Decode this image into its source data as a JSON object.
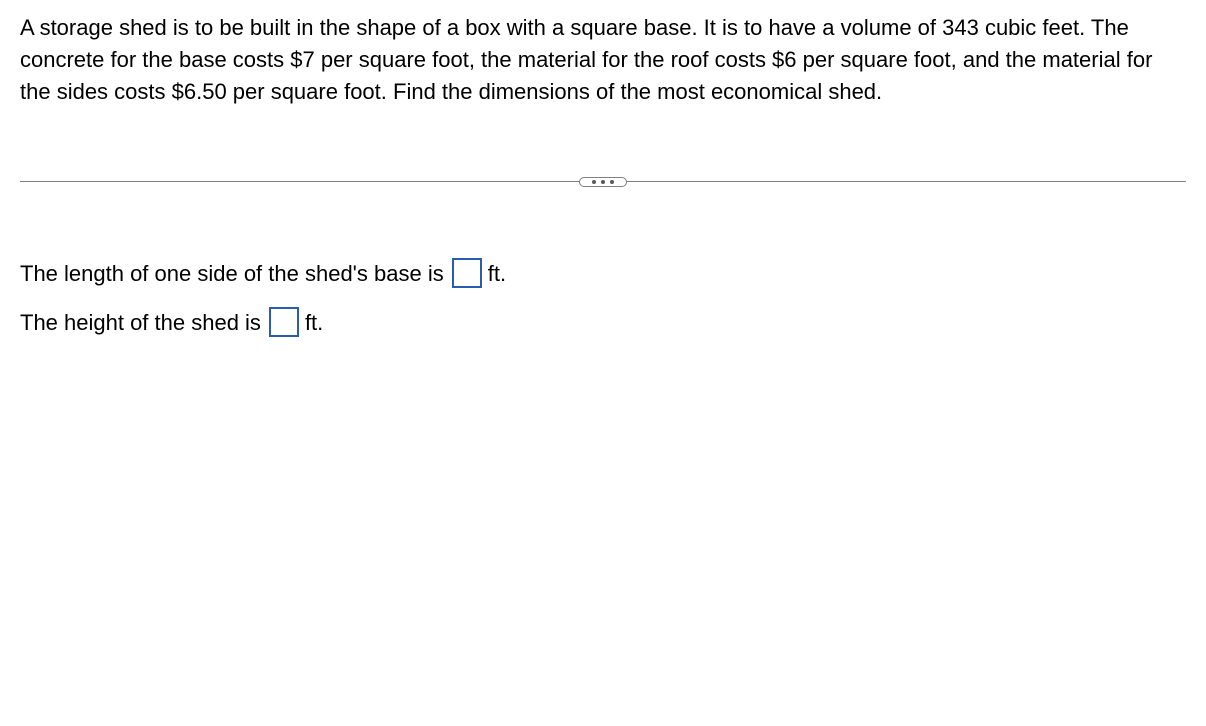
{
  "problem": {
    "text": "A storage shed is to be built in the shape of a box with a square base. It is to have a volume of 343 cubic feet. The concrete for the base costs $7 per square foot, the material for the roof costs $6 per square foot, and the material for the sides costs $6.50 per square foot. Find the dimensions of the most economical shed."
  },
  "answers": {
    "base": {
      "prefix": "The length of one side of the shed's base is",
      "value": "",
      "unit": "ft."
    },
    "height": {
      "prefix": "The height of the shed is",
      "value": "",
      "unit": "ft."
    }
  },
  "styling": {
    "text_color": "#000000",
    "background_color": "#ffffff",
    "input_border_color": "#2a5db0",
    "divider_color": "#808080",
    "font_size_body": 22,
    "font_family": "Arial"
  }
}
